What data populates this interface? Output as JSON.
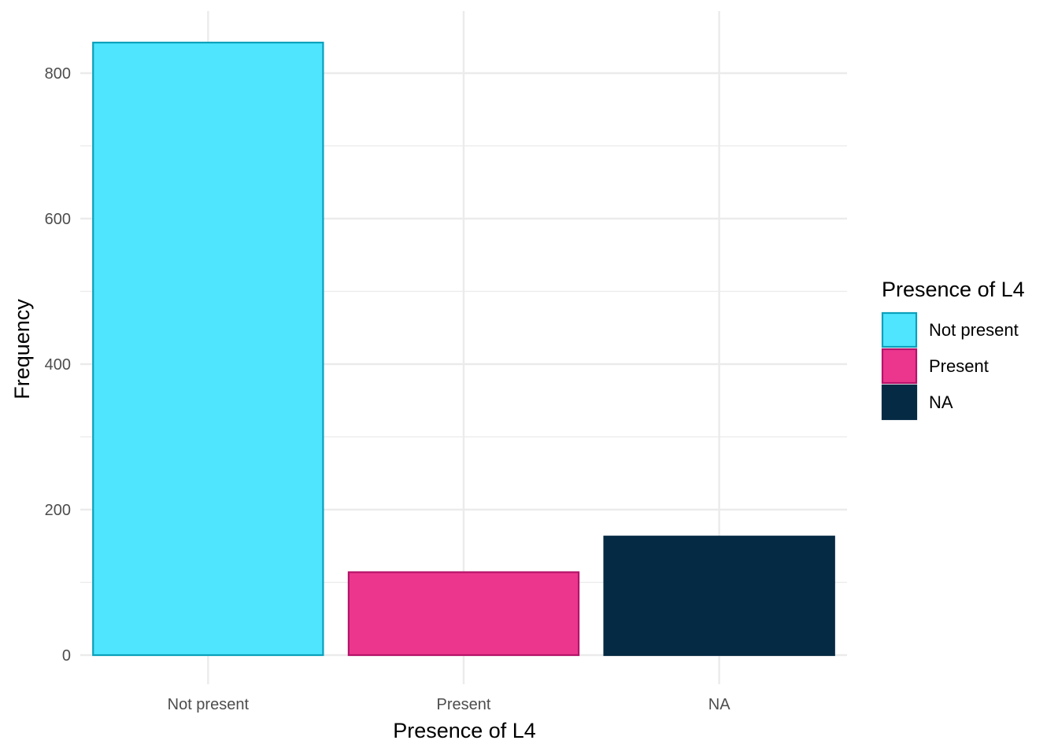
{
  "chart_data": {
    "type": "bar",
    "categories": [
      "Not present",
      "Present",
      "NA"
    ],
    "values": [
      842,
      114,
      163
    ],
    "fill_colors": [
      "#4fe5ff",
      "#ec368d",
      "#042a44"
    ],
    "border_colors": [
      "#0aa0bc",
      "#b5136a",
      "#042a44"
    ],
    "title": "",
    "xlabel": "Presence of L4",
    "ylabel": "Frequency",
    "ylim": [
      0,
      900
    ],
    "y_ticks": [
      0,
      200,
      400,
      600,
      800
    ],
    "y_tick_labels": [
      "0",
      "200",
      "400",
      "600",
      "800"
    ],
    "grid": true,
    "grid_color": "#ebebeb",
    "legend": {
      "title": "Presence of L4",
      "position": "right",
      "entries": [
        "Not present",
        "Present",
        "NA"
      ]
    }
  }
}
